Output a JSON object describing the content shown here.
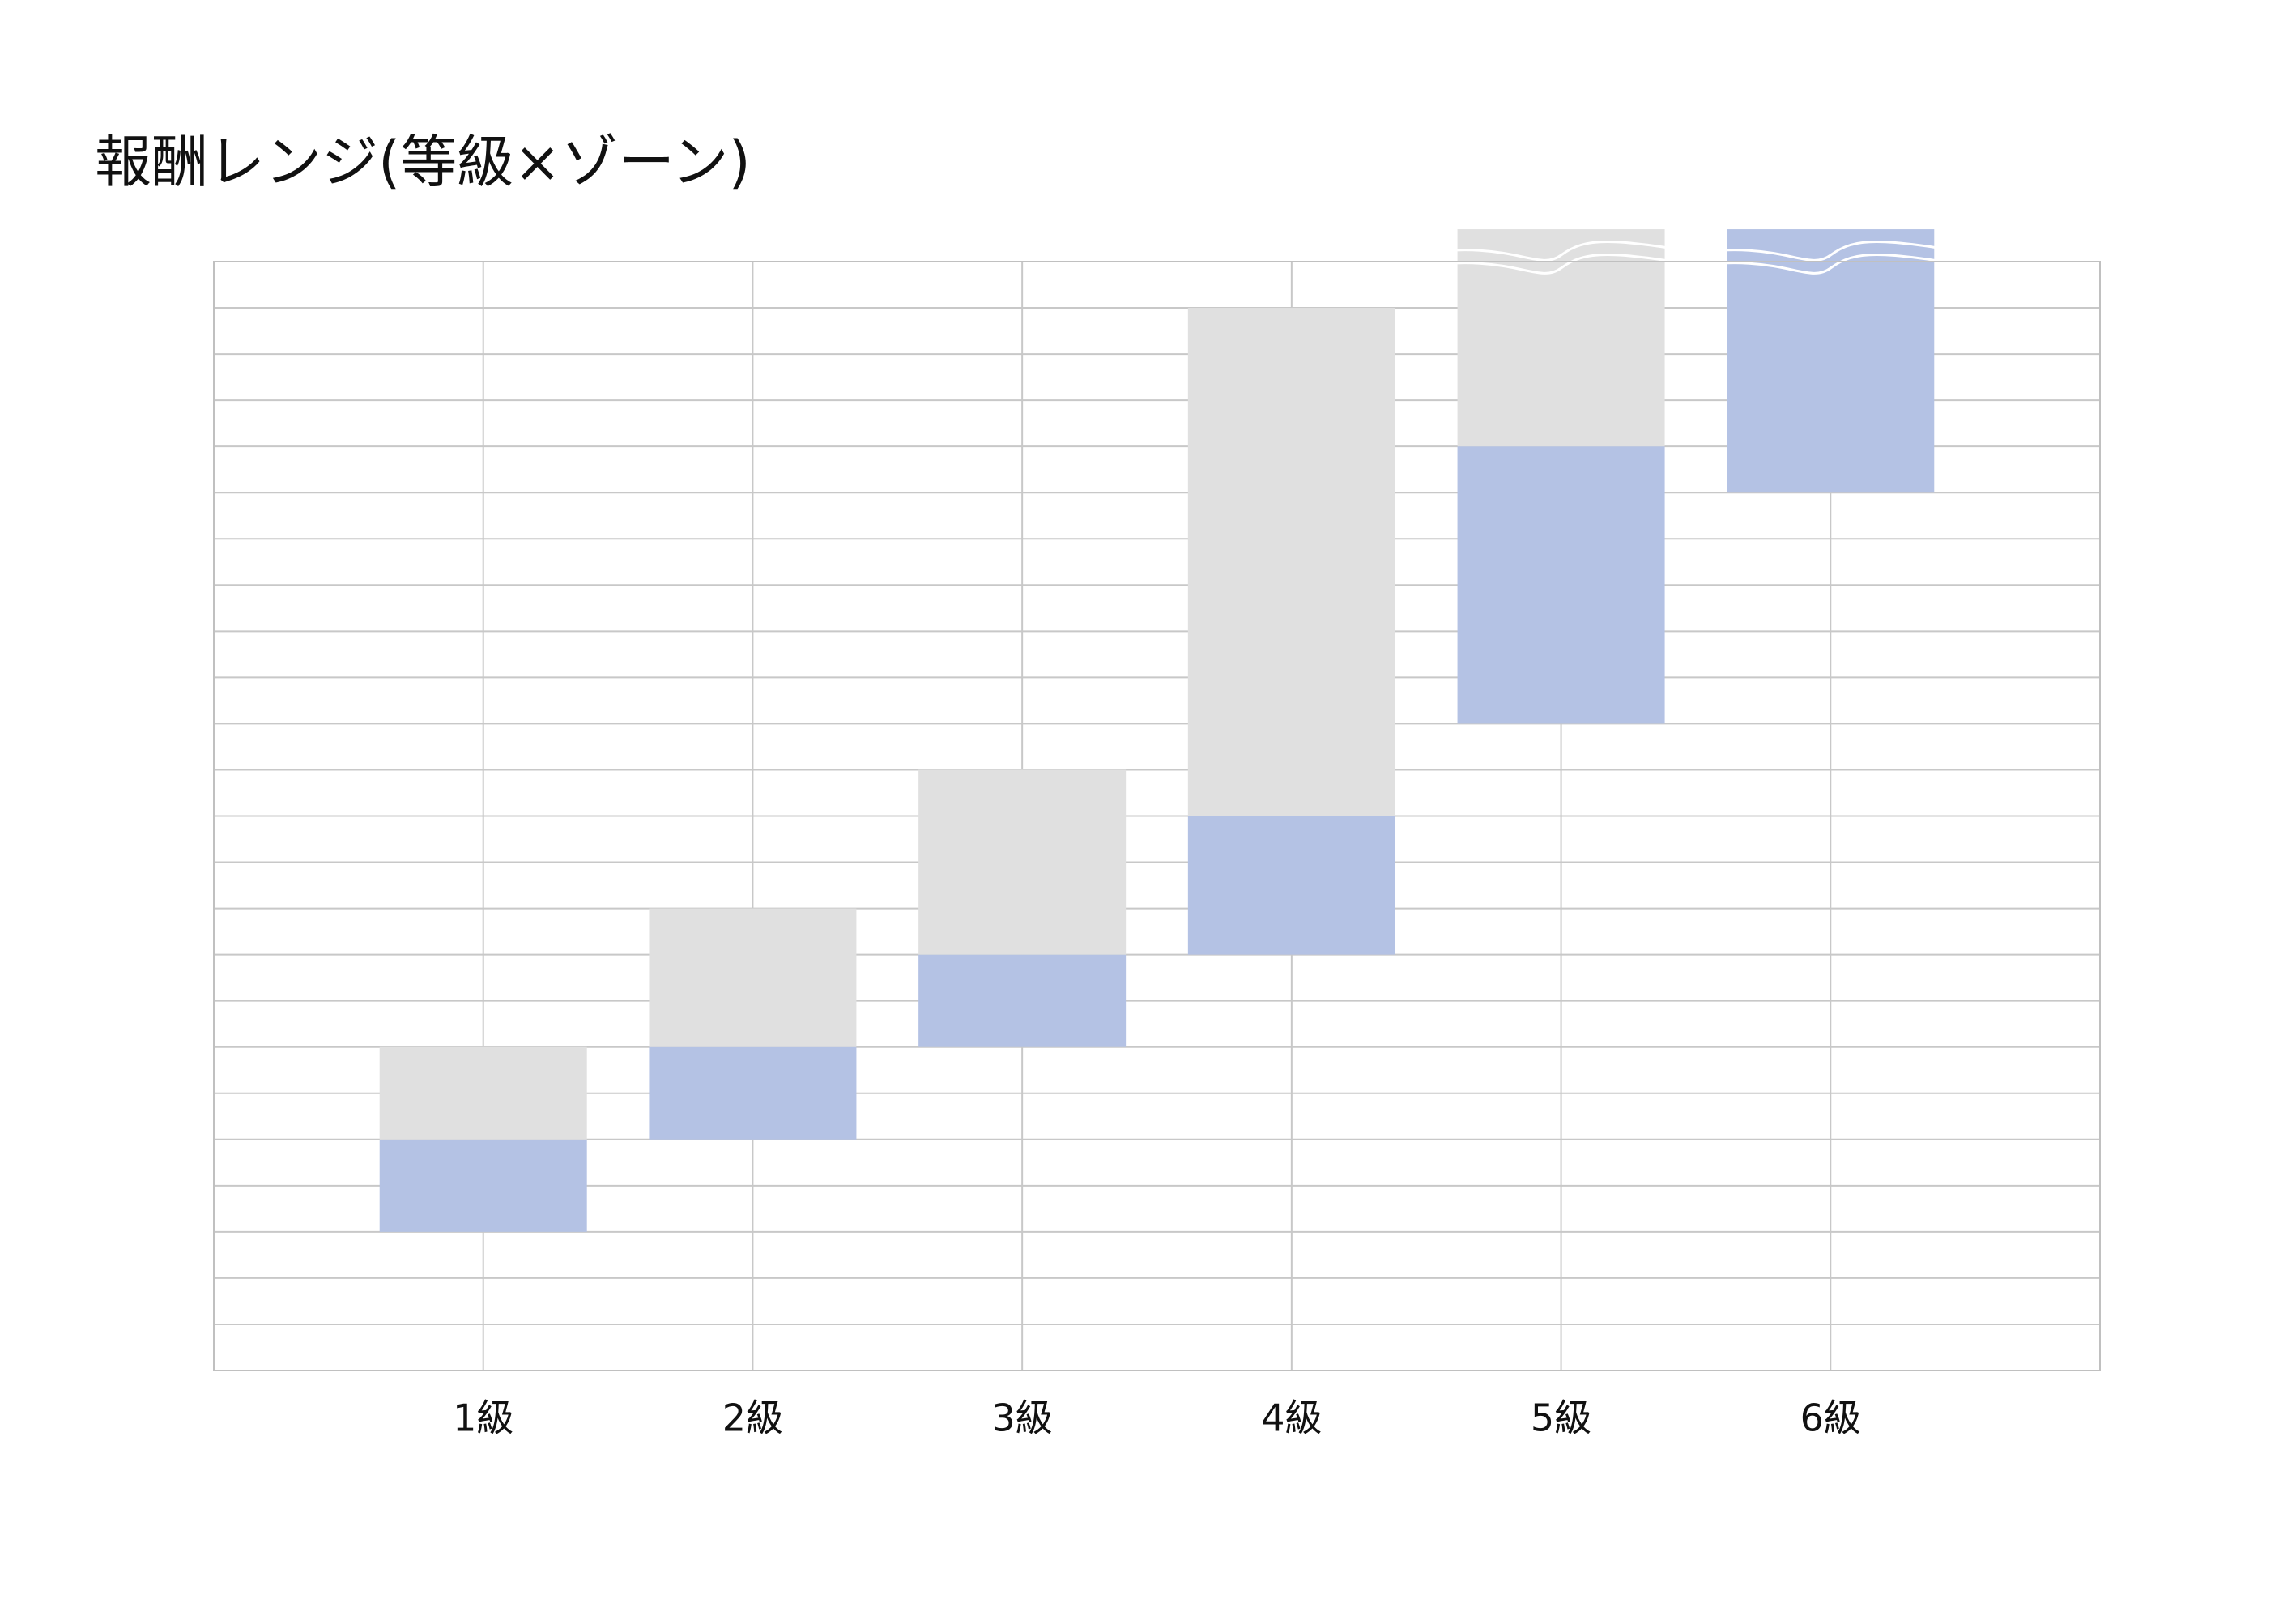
{
  "chart_data": {
    "type": "floating_stacked_bar",
    "title": "報酬レンジ(等級×ゾーン)",
    "categories": [
      "1級",
      "2級",
      "3級",
      "4級",
      "5級",
      "6級"
    ],
    "base": [
      3,
      5,
      7,
      9,
      14,
      19
    ],
    "series": [
      {
        "color": "#b4c2e4",
        "values": [
          2,
          2,
          2,
          3,
          6,
          5.7
        ]
      },
      {
        "color": "#e0e0e0",
        "values": [
          2,
          3,
          4,
          11,
          4.7,
          null
        ]
      }
    ],
    "ylim": [
      0,
      24
    ],
    "yticks": [
      0,
      1,
      2,
      3,
      4,
      5,
      6,
      7,
      8,
      9,
      10,
      11,
      12,
      13,
      14,
      15,
      16,
      17,
      18,
      19,
      20,
      21,
      22,
      23,
      24
    ],
    "grid": true
  }
}
